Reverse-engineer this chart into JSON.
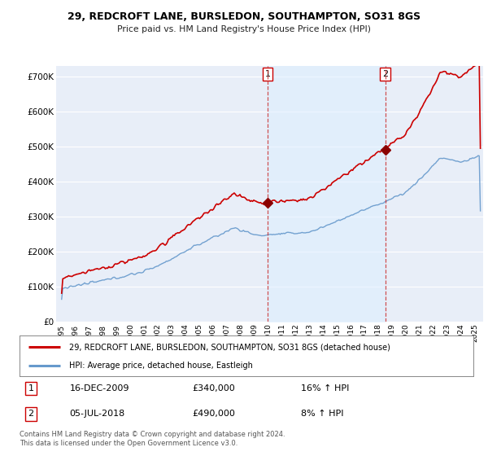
{
  "title1": "29, REDCROFT LANE, BURSLEDON, SOUTHAMPTON, SO31 8GS",
  "title2": "Price paid vs. HM Land Registry's House Price Index (HPI)",
  "ylabel_ticks": [
    "£0",
    "£100K",
    "£200K",
    "£300K",
    "£400K",
    "£500K",
    "£600K",
    "£700K"
  ],
  "ytick_values": [
    0,
    100000,
    200000,
    300000,
    400000,
    500000,
    600000,
    700000
  ],
  "ylim": [
    0,
    730000
  ],
  "purchase1_year": 2009.96,
  "purchase1_price": 340000,
  "purchase1_label": "1",
  "purchase2_year": 2018.5,
  "purchase2_price": 490000,
  "purchase2_label": "2",
  "line_red": "#cc0000",
  "line_blue": "#6699cc",
  "fill_blue": "#ddeeff",
  "bg_color": "#e8eef8",
  "grid_color": "#ffffff",
  "dashed_color": "#cc3333",
  "dot_color": "#8b0000",
  "legend_label1": "29, REDCROFT LANE, BURSLEDON, SOUTHAMPTON, SO31 8GS (detached house)",
  "legend_label2": "HPI: Average price, detached house, Eastleigh",
  "footnote": "Contains HM Land Registry data © Crown copyright and database right 2024.\nThis data is licensed under the Open Government Licence v3.0.",
  "table_row1": [
    "1",
    "16-DEC-2009",
    "£340,000",
    "16% ↑ HPI"
  ],
  "table_row2": [
    "2",
    "05-JUL-2018",
    "£490,000",
    "8% ↑ HPI"
  ]
}
